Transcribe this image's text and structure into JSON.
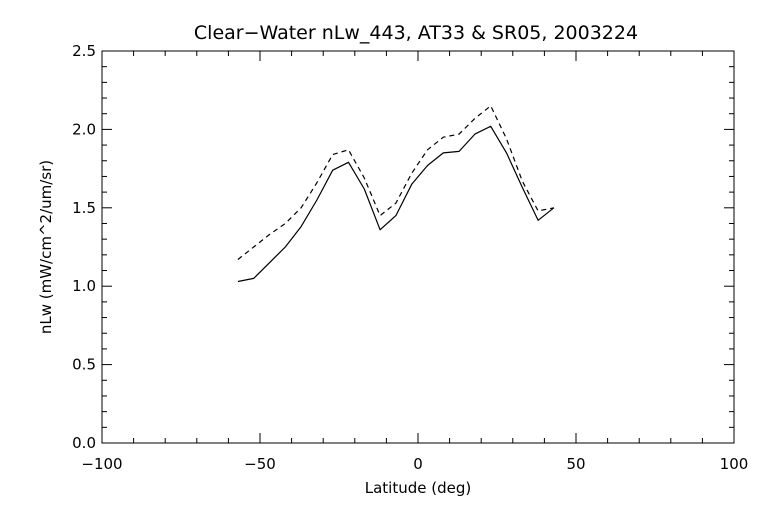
{
  "chart_data": {
    "type": "line",
    "title": "Clear−Water nLw_443, AT33 & SR05, 2003224",
    "xlabel": "Latitude (deg)",
    "ylabel": "nLw (mW/cm^2/um/sr)",
    "xlim": [
      -100,
      100
    ],
    "ylim": [
      0.0,
      2.5
    ],
    "xticks": [
      -100,
      -50,
      0,
      50,
      100
    ],
    "xtick_labels": [
      "−100",
      "−50",
      "0",
      "50",
      "100"
    ],
    "yticks": [
      0.0,
      0.5,
      1.0,
      1.5,
      2.0,
      2.5
    ],
    "ytick_labels": [
      "0.0",
      "0.5",
      "1.0",
      "1.5",
      "2.0",
      "2.5"
    ],
    "grid": false,
    "series": [
      {
        "style": "solid",
        "color": "#000000",
        "x": [
          -57,
          -52,
          -47,
          -42,
          -37,
          -32,
          -27,
          -22,
          -17,
          -12,
          -7,
          -2,
          3,
          8,
          13,
          18,
          23,
          28,
          33,
          38,
          43
        ],
        "y": [
          1.03,
          1.05,
          1.15,
          1.25,
          1.38,
          1.55,
          1.74,
          1.79,
          1.62,
          1.36,
          1.45,
          1.65,
          1.77,
          1.85,
          1.86,
          1.97,
          2.02,
          1.85,
          1.63,
          1.42,
          1.5
        ]
      },
      {
        "style": "dashed",
        "color": "#000000",
        "x": [
          -57,
          -52,
          -47,
          -42,
          -37,
          -32,
          -27,
          -22,
          -17,
          -12,
          -7,
          -2,
          3,
          8,
          13,
          18,
          23,
          28,
          33,
          38,
          43
        ],
        "y": [
          1.17,
          1.25,
          1.33,
          1.4,
          1.5,
          1.66,
          1.84,
          1.87,
          1.69,
          1.45,
          1.53,
          1.72,
          1.87,
          1.95,
          1.97,
          2.07,
          2.15,
          1.94,
          1.67,
          1.48,
          1.5
        ]
      }
    ]
  }
}
